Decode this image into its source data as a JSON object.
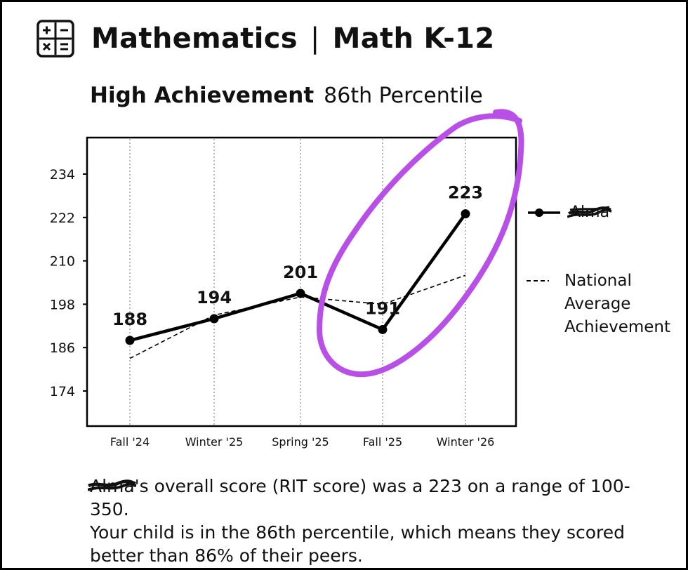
{
  "header": {
    "icon": "calculator-icon",
    "subject": "Mathematics",
    "separator": "|",
    "course": "Math K-12"
  },
  "achievement": {
    "level": "High Achievement",
    "percentile": "86th Percentile"
  },
  "chart_data": {
    "type": "line",
    "categories": [
      "Fall '24",
      "Winter '25",
      "Spring '25",
      "Fall '25",
      "Winter '26"
    ],
    "series": [
      {
        "name": "Alma",
        "values": [
          188,
          194,
          201,
          191,
          223
        ],
        "color": "#000000",
        "style": "solid",
        "markers": true,
        "redacted": true
      },
      {
        "name": "National Average Achievement",
        "values": [
          183,
          195,
          200,
          198,
          206
        ],
        "color": "#000000",
        "style": "dashed",
        "markers": false
      }
    ],
    "data_labels": [
      "188",
      "194",
      "201",
      "191",
      "223"
    ],
    "y_ticks": [
      174,
      186,
      198,
      210,
      222,
      234
    ],
    "ylim": [
      164,
      244
    ],
    "grid": "vertical-dotted",
    "legend_placement": "right",
    "annotation": {
      "type": "hand-drawn-circle",
      "color": "#b84fe6",
      "around": [
        "Fall '25",
        "Winter '26"
      ]
    }
  },
  "legend": {
    "series_name": "Alma",
    "national_lines": [
      "National",
      "Average",
      "Achievement"
    ]
  },
  "summary": {
    "student_name": "Alma",
    "possessive": "'s",
    "line1_rest": " overall score (RIT score) was a 223 on a range of 100-350.",
    "line2": "Your child is in the 86th percentile, which means they scored better than 86% of their peers."
  }
}
